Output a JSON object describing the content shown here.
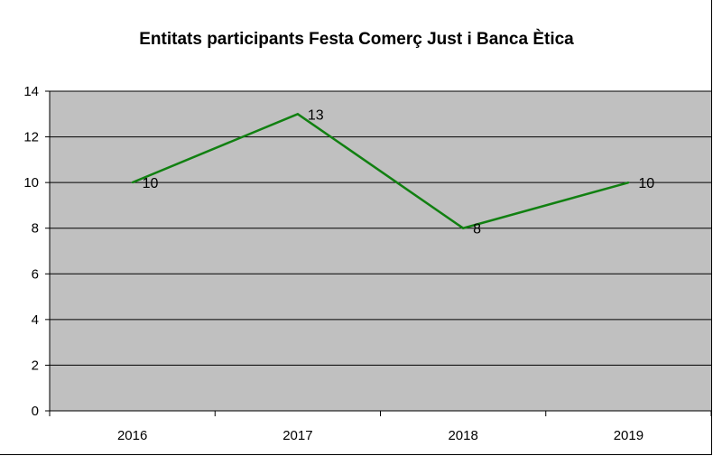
{
  "chart_data": {
    "type": "line",
    "title": "Entitats participants Festa Comerç Just i Banca Ètica",
    "categories": [
      "2016",
      "2017",
      "2018",
      "2019"
    ],
    "series": [
      {
        "values": [
          10,
          13,
          8,
          10
        ]
      }
    ],
    "data_labels": [
      "10",
      "13",
      "8",
      "10"
    ],
    "ylim": [
      0,
      14
    ],
    "yticks": [
      0,
      2,
      4,
      6,
      8,
      10,
      12,
      14
    ],
    "grid": true,
    "legend": "none",
    "colors": {
      "line": "#118011",
      "plot_bg": "#c0c0c0",
      "grid": "#000000"
    }
  }
}
